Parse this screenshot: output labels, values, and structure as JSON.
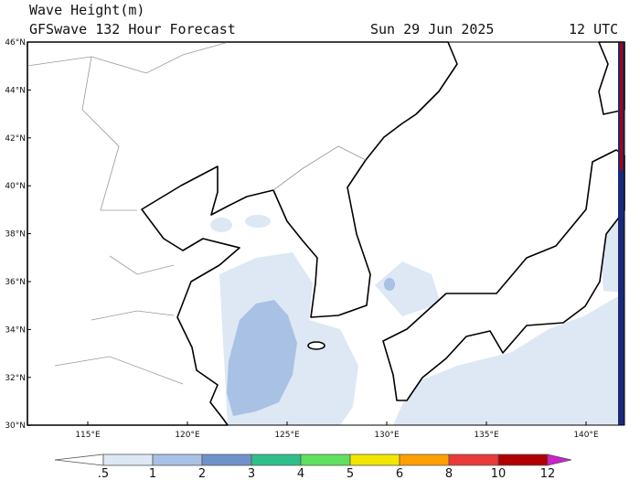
{
  "header": {
    "title": "Wave Height(m)",
    "subtitle": "GFSwave 132 Hour Forecast",
    "date": "Sun 29 Jun 2025",
    "time": "12 UTC"
  },
  "map": {
    "lat_labels": [
      "46°N",
      "44°N",
      "42°N",
      "40°N",
      "38°N",
      "36°N",
      "34°N",
      "32°N",
      "30°N"
    ],
    "lon_labels": [
      "115°E",
      "120°E",
      "125°E",
      "130°E",
      "135°E",
      "140°E"
    ]
  },
  "colorbar": {
    "labels": [
      ".5",
      "1",
      "2",
      "3",
      "4",
      "5",
      "6",
      "8",
      "10",
      "12"
    ],
    "colors": [
      "#ffffff",
      "#dde8f4",
      "#a9c1e4",
      "#6f92ca",
      "#2fbf8c",
      "#5fe05f",
      "#f2e600",
      "#ffa000",
      "#e83a3a",
      "#b00000",
      "#cc22cc"
    ]
  }
}
